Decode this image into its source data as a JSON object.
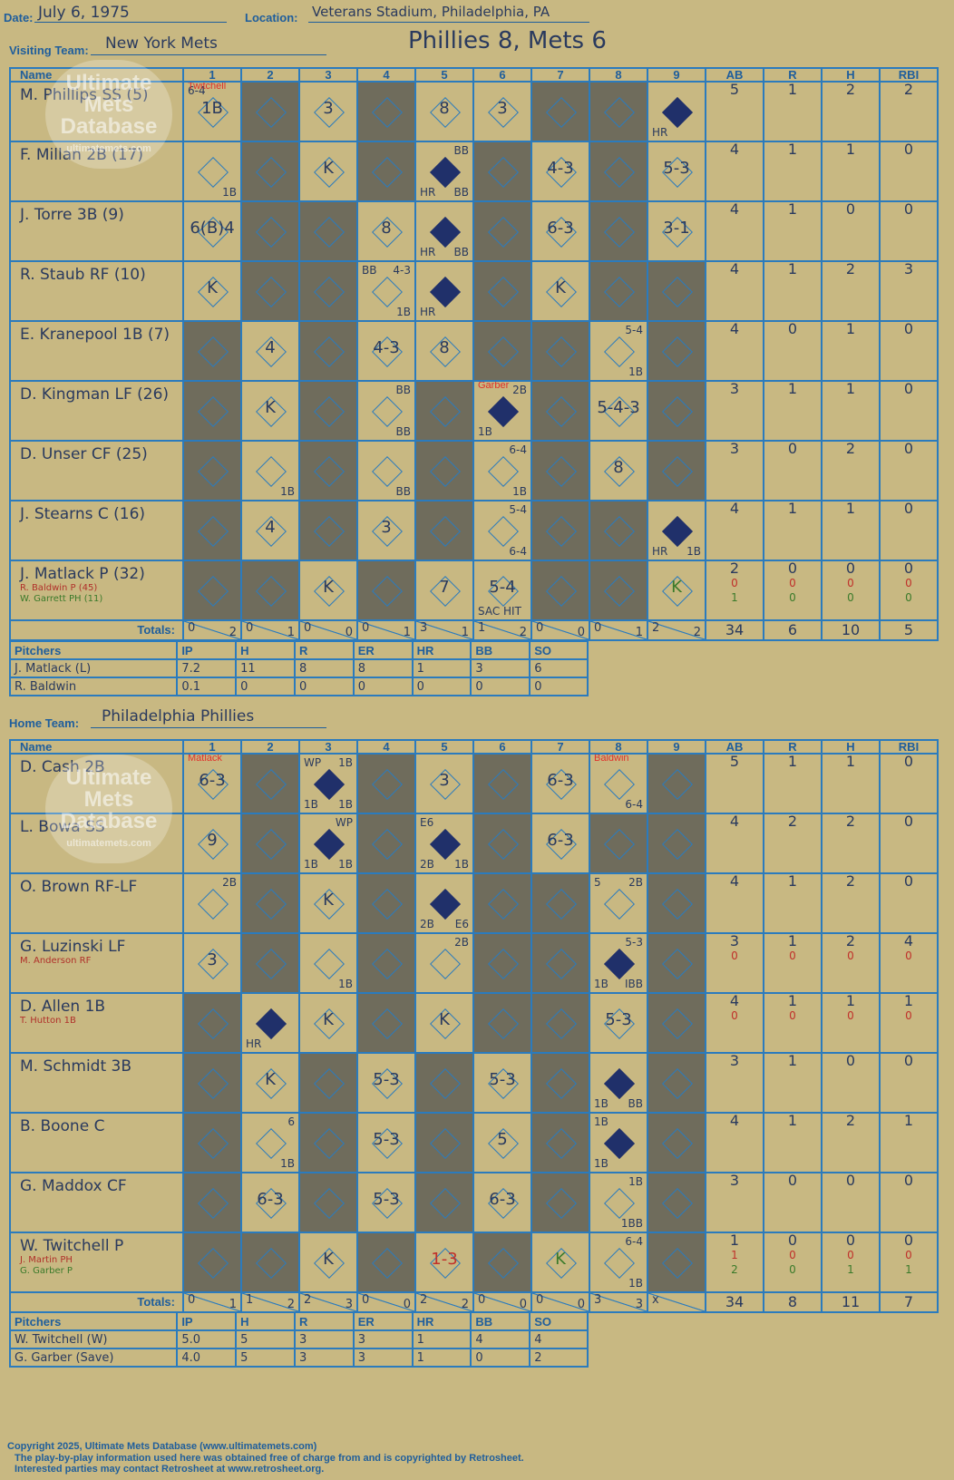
{
  "header": {
    "date_label": "Date:",
    "date": "July 6, 1975",
    "location_label": "Location:",
    "location": "Veterans Stadium, Philadelphia, PA",
    "headline": "Phillies 8, Mets 6"
  },
  "watermark": {
    "line1": "Ultimate",
    "line2": "Mets",
    "line3": "Database",
    "url": "ultimatemets.com"
  },
  "columns": [
    "Name",
    "1",
    "2",
    "3",
    "4",
    "5",
    "6",
    "7",
    "8",
    "9",
    "AB",
    "R",
    "H",
    "RBI"
  ],
  "visitors": {
    "label": "Visiting Team:",
    "team": "New York Mets",
    "rows": [
      {
        "name": "M. Phillips SS (5)",
        "ab": "5",
        "r": "1",
        "h": "2",
        "rbi": "2"
      },
      {
        "name": "F. Millan 2B (17)",
        "ab": "4",
        "r": "1",
        "h": "1",
        "rbi": "0"
      },
      {
        "name": "J. Torre 3B (9)",
        "ab": "4",
        "r": "1",
        "h": "0",
        "rbi": "0"
      },
      {
        "name": "R. Staub RF (10)",
        "ab": "4",
        "r": "1",
        "h": "2",
        "rbi": "3"
      },
      {
        "name": "E. Kranepool 1B (7)",
        "ab": "4",
        "r": "0",
        "h": "1",
        "rbi": "0"
      },
      {
        "name": "D. Kingman LF (26)",
        "ab": "3",
        "r": "1",
        "h": "1",
        "rbi": "0"
      },
      {
        "name": "D. Unser CF (25)",
        "ab": "3",
        "r": "0",
        "h": "2",
        "rbi": "0"
      },
      {
        "name": "J. Stearns C (16)",
        "ab": "4",
        "r": "1",
        "h": "1",
        "rbi": "0"
      },
      {
        "name": "J. Matlack P (32)",
        "sub1": "R. Baldwin P (45)",
        "sub2": "W. Garrett PH (11)",
        "ab": "2",
        "r": "0",
        "h": "0",
        "rbi": "0",
        "ab2": "0",
        "r2": "0",
        "h2": "0",
        "rbi2": "0",
        "ab3": "1",
        "r3": "0",
        "h3": "0",
        "rbi3": "0"
      }
    ],
    "cells": [
      [
        {
          "t": "1B",
          "pit": "Twitchell",
          "tl": "6-4"
        },
        {
          "d": 1
        },
        {
          "t": "3"
        },
        {
          "d": 1
        },
        {
          "t": "8"
        },
        {
          "t": "3"
        },
        {
          "d": 1
        },
        {
          "d": 1
        },
        {
          "run": 1,
          "bl": "HR"
        }
      ],
      [
        {
          "br": "1B"
        },
        {
          "d": 1
        },
        {
          "t": "K"
        },
        {
          "d": 1
        },
        {
          "run": 1,
          "tr": "BB",
          "bl": "HR",
          "br": "BB"
        },
        {
          "d": 1
        },
        {
          "t": "4-3"
        },
        {
          "d": 1
        },
        {
          "t": "5-3"
        }
      ],
      [
        {
          "t": "6(B)4"
        },
        {
          "d": 1
        },
        {
          "d": 1
        },
        {
          "t": "8"
        },
        {
          "run": 1,
          "bl": "HR",
          "br": "BB"
        },
        {
          "d": 1
        },
        {
          "t": "6-3"
        },
        {
          "d": 1
        },
        {
          "t": "3-1"
        }
      ],
      [
        {
          "t": "K"
        },
        {
          "d": 1
        },
        {
          "d": 1
        },
        {
          "tl": "BB",
          "tr": "4-3",
          "br": "1B"
        },
        {
          "run": 1,
          "bl": "HR"
        },
        {
          "d": 1
        },
        {
          "t": "K"
        },
        {
          "d": 1
        },
        {
          "d": 1
        }
      ],
      [
        {
          "d": 1
        },
        {
          "t": "4"
        },
        {
          "d": 1
        },
        {
          "t": "4-3"
        },
        {
          "t": "8"
        },
        {
          "d": 1
        },
        {
          "d": 1
        },
        {
          "tr": "5-4",
          "br": "1B"
        },
        {
          "d": 1
        }
      ],
      [
        {
          "d": 1
        },
        {
          "t": "K"
        },
        {
          "d": 1
        },
        {
          "tr": "BB",
          "br": "BB"
        },
        {
          "d": 1
        },
        {
          "run": 1,
          "pit": "Garber",
          "tr": "2B",
          "bl": "1B"
        },
        {
          "d": 1
        },
        {
          "t": "5-4-3"
        },
        {
          "d": 1
        }
      ],
      [
        {
          "d": 1
        },
        {
          "br": "1B"
        },
        {
          "d": 1
        },
        {
          "br": "BB"
        },
        {
          "d": 1
        },
        {
          "tr": "6-4",
          "br": "1B"
        },
        {
          "d": 1
        },
        {
          "t": "8"
        },
        {
          "d": 1
        }
      ],
      [
        {
          "d": 1
        },
        {
          "t": "4"
        },
        {
          "d": 1
        },
        {
          "t": "3"
        },
        {
          "d": 1
        },
        {
          "tr": "5-4",
          "br": "6-4"
        },
        {
          "d": 1
        },
        {
          "d": 1
        },
        {
          "run": 1,
          "bl": "HR",
          "br": "1B"
        }
      ],
      [
        {
          "d": 1
        },
        {
          "d": 1
        },
        {
          "t": "K"
        },
        {
          "d": 1
        },
        {
          "t": "7"
        },
        {
          "t": "5-4",
          "bl": "SAC HIT"
        },
        {
          "d": 1
        },
        {
          "d": 1
        },
        {
          "t": "K",
          "green": 1
        }
      ]
    ],
    "totals_label": "Totals:",
    "rh_r": "R",
    "rh_h": "H",
    "inning_totals": [
      [
        "0",
        "2"
      ],
      [
        "0",
        "1"
      ],
      [
        "0",
        "0"
      ],
      [
        "0",
        "1"
      ],
      [
        "3",
        "1"
      ],
      [
        "1",
        "2"
      ],
      [
        "0",
        "0"
      ],
      [
        "0",
        "1"
      ],
      [
        "2",
        "2"
      ]
    ],
    "totals": {
      "ab": "34",
      "r": "6",
      "h": "10",
      "rbi": "5"
    }
  },
  "visitor_pitchers": {
    "header": [
      "Pitchers",
      "IP",
      "H",
      "R",
      "ER",
      "HR",
      "BB",
      "SO"
    ],
    "rows": [
      [
        "J. Matlack (L)",
        "7.2",
        "11",
        "8",
        "8",
        "1",
        "3",
        "6"
      ],
      [
        "R. Baldwin",
        "0.1",
        "0",
        "0",
        "0",
        "0",
        "0",
        "0"
      ]
    ]
  },
  "home": {
    "label": "Home Team:",
    "team": "Philadelphia Phillies",
    "rows": [
      {
        "name": "D. Cash 2B",
        "ab": "5",
        "r": "1",
        "h": "1",
        "rbi": "0"
      },
      {
        "name": "L. Bowa SS",
        "ab": "4",
        "r": "2",
        "h": "2",
        "rbi": "0"
      },
      {
        "name": "O. Brown RF-LF",
        "ab": "4",
        "r": "1",
        "h": "2",
        "rbi": "0"
      },
      {
        "name": "G. Luzinski LF",
        "sub1": "M. Anderson RF",
        "ab": "3",
        "r": "1",
        "h": "2",
        "rbi": "4",
        "ab2": "0",
        "r2": "0",
        "h2": "0",
        "rbi2": "0"
      },
      {
        "name": "D. Allen 1B",
        "sub1": "T. Hutton 1B",
        "ab": "4",
        "r": "1",
        "h": "1",
        "rbi": "1",
        "ab2": "0",
        "r2": "0",
        "h2": "0",
        "rbi2": "0"
      },
      {
        "name": "M. Schmidt 3B",
        "ab": "3",
        "r": "1",
        "h": "0",
        "rbi": "0"
      },
      {
        "name": "B. Boone C",
        "ab": "4",
        "r": "1",
        "h": "2",
        "rbi": "1"
      },
      {
        "name": "G. Maddox CF",
        "ab": "3",
        "r": "0",
        "h": "0",
        "rbi": "0"
      },
      {
        "name": "W. Twitchell P",
        "sub1": "J. Martin PH",
        "sub2": "G. Garber P",
        "ab": "1",
        "r": "0",
        "h": "0",
        "rbi": "0",
        "ab2": "1",
        "r2": "0",
        "h2": "0",
        "rbi2": "0",
        "ab3": "2",
        "r3": "0",
        "h3": "1",
        "rbi3": "1"
      }
    ],
    "cells": [
      [
        {
          "t": "6-3",
          "pit": "Matlack"
        },
        {
          "d": 1
        },
        {
          "run": 1,
          "tl": "WP",
          "tr": "1B",
          "bl": "1B",
          "br": "1B"
        },
        {
          "d": 1
        },
        {
          "t": "3"
        },
        {
          "d": 1
        },
        {
          "t": "6-3"
        },
        {
          "pit": "Baldwin",
          "br": "6-4"
        },
        {
          "d": 1
        }
      ],
      [
        {
          "t": "9"
        },
        {
          "d": 1
        },
        {
          "run": 1,
          "tr": "WP",
          "bl": "1B",
          "br": "1B"
        },
        {
          "d": 1
        },
        {
          "run": 1,
          "tl": "E6",
          "bl": "2B",
          "br": "1B"
        },
        {
          "d": 1
        },
        {
          "t": "6-3"
        },
        {
          "d": 1
        },
        {
          "d": 1
        }
      ],
      [
        {
          "tr": "2B"
        },
        {
          "d": 1
        },
        {
          "t": "K"
        },
        {
          "d": 1
        },
        {
          "run": 1,
          "bl": "2B",
          "br": "E6"
        },
        {
          "d": 1
        },
        {
          "d": 1
        },
        {
          "tl": "5",
          "tr": "2B"
        },
        {
          "d": 1
        }
      ],
      [
        {
          "t": "3"
        },
        {
          "d": 1
        },
        {
          "br": "1B"
        },
        {
          "d": 1
        },
        {
          "tr": "2B"
        },
        {
          "d": 1
        },
        {
          "d": 1
        },
        {
          "run": 1,
          "tr": "5-3",
          "bl": "1B",
          "br": "IBB"
        },
        {
          "d": 1
        }
      ],
      [
        {
          "d": 1
        },
        {
          "run": 1,
          "bl": "HR"
        },
        {
          "t": "K"
        },
        {
          "d": 1
        },
        {
          "t": "K"
        },
        {
          "d": 1
        },
        {
          "d": 1
        },
        {
          "t": "5-3"
        },
        {
          "d": 1
        }
      ],
      [
        {
          "d": 1
        },
        {
          "t": "K"
        },
        {
          "d": 1
        },
        {
          "t": "5-3"
        },
        {
          "d": 1
        },
        {
          "t": "5-3"
        },
        {
          "d": 1
        },
        {
          "run": 1,
          "bl": "1B",
          "br": "BB"
        },
        {
          "d": 1
        }
      ],
      [
        {
          "d": 1
        },
        {
          "tr": "6",
          "br": "1B"
        },
        {
          "d": 1
        },
        {
          "t": "5-3"
        },
        {
          "d": 1
        },
        {
          "t": "5"
        },
        {
          "d": 1
        },
        {
          "run": 1,
          "tl": "1B",
          "bl": "1B"
        },
        {
          "d": 1
        }
      ],
      [
        {
          "d": 1
        },
        {
          "t": "6-3"
        },
        {
          "d": 1
        },
        {
          "t": "5-3"
        },
        {
          "d": 1
        },
        {
          "t": "6-3"
        },
        {
          "d": 1
        },
        {
          "tr": "1B",
          "br": "1BB"
        },
        {
          "d": 1
        }
      ],
      [
        {
          "d": 1
        },
        {
          "d": 1
        },
        {
          "t": "K"
        },
        {
          "d": 1
        },
        {
          "t": "1-3",
          "red": 1
        },
        {
          "d": 1
        },
        {
          "t": "K",
          "green": 1
        },
        {
          "tr": "6-4",
          "br": "1B"
        },
        {
          "d": 1
        }
      ]
    ],
    "totals_label": "Totals:",
    "rh_r": "R",
    "rh_h": "H",
    "inning_totals": [
      [
        "0",
        "1"
      ],
      [
        "1",
        "2"
      ],
      [
        "2",
        "3"
      ],
      [
        "0",
        "0"
      ],
      [
        "2",
        "2"
      ],
      [
        "0",
        "0"
      ],
      [
        "0",
        "0"
      ],
      [
        "3",
        "3"
      ],
      [
        "x",
        ""
      ]
    ],
    "totals": {
      "ab": "34",
      "r": "8",
      "h": "11",
      "rbi": "7"
    }
  },
  "home_pitchers": {
    "header": [
      "Pitchers",
      "IP",
      "H",
      "R",
      "ER",
      "HR",
      "BB",
      "SO"
    ],
    "rows": [
      [
        "W. Twitchell (W)",
        "5.0",
        "5",
        "3",
        "3",
        "1",
        "4",
        "4"
      ],
      [
        "G. Garber (Save)",
        "4.0",
        "5",
        "3",
        "3",
        "1",
        "0",
        "2"
      ]
    ]
  },
  "footer": {
    "line1": "Copyright 2025, Ultimate Mets Database (www.ultimatemets.com)",
    "line2": "The play-by-play information used here was obtained free of charge from and is copyrighted by Retrosheet.",
    "line3": "Interested parties may contact Retrosheet at www.retrosheet.org."
  },
  "colors": {
    "background": "#c8b882",
    "grid": "#2b7bbd",
    "dark_cell": "#6f6c5c",
    "run_diamond": "#20306a",
    "pitcher_change": "#e0302a"
  }
}
